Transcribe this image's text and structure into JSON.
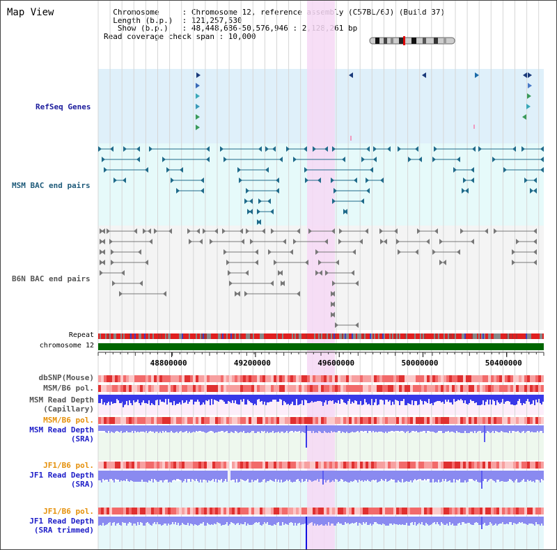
{
  "view": {
    "title": "Map View",
    "info_lines": [
      "  Chromosome     : Chromosome 12, reference assembly (C57BL/6J) (Build 37)",
      "  Length (b.p.)  : 121,257,530",
      "   Show (b.p.)   : 48,448,686-50,576,946 : 2,128,261 bp",
      "Read coverage check span : 10,000"
    ]
  },
  "tracks": {
    "refseq_label": "RefSeq Genes",
    "msm_bac_label": "MSM BAC end pairs",
    "b6n_bac_label": "B6N BAC end pairs",
    "repeat_label": "Repeat",
    "chromosome_label": "chromosome 12",
    "dbsnp_label": "dbSNP(Mouse)",
    "msm_b6_pol_label": "MSM/B6 pol.",
    "msm_read_depth_cap_label_1": "MSM Read Depth",
    "msm_read_depth_cap_label_2": "(Capillary)",
    "msm_b6_pol2_label": "MSM/B6 pol.",
    "msm_read_depth_sra_label_1": "MSM Read Depth",
    "msm_read_depth_sra_label_2": "(SRA)",
    "jf1_b6_pol_label": "JF1/B6 pol.",
    "jf1_read_depth_sra_label_1": "JF1 Read Depth",
    "jf1_read_depth_sra_label_2": "(SRA)",
    "jf1_b6_pol2_label": "JF1/B6 pol.",
    "jf1_read_depth_trim_label_1": "JF1 Read Depth",
    "jf1_read_depth_trim_label_2": "(SRA trimmed)"
  },
  "axis": {
    "range": [
      48448686,
      50576946
    ],
    "ticks": [
      "48800000",
      "49200000",
      "49600000",
      "50000000",
      "50400000"
    ]
  },
  "colors": {
    "gene_bg": "#dff0fa",
    "msm_bac_bg": "#e6fafa",
    "b6_bac_bg": "#f4f4f4",
    "highlight": "#f6d8f4",
    "chromosome": "#006600",
    "repeat_red": "#e02020",
    "depth_blue": "#3838e8",
    "depth_light": "#8a8af0",
    "pol_red": "#f05050"
  }
}
